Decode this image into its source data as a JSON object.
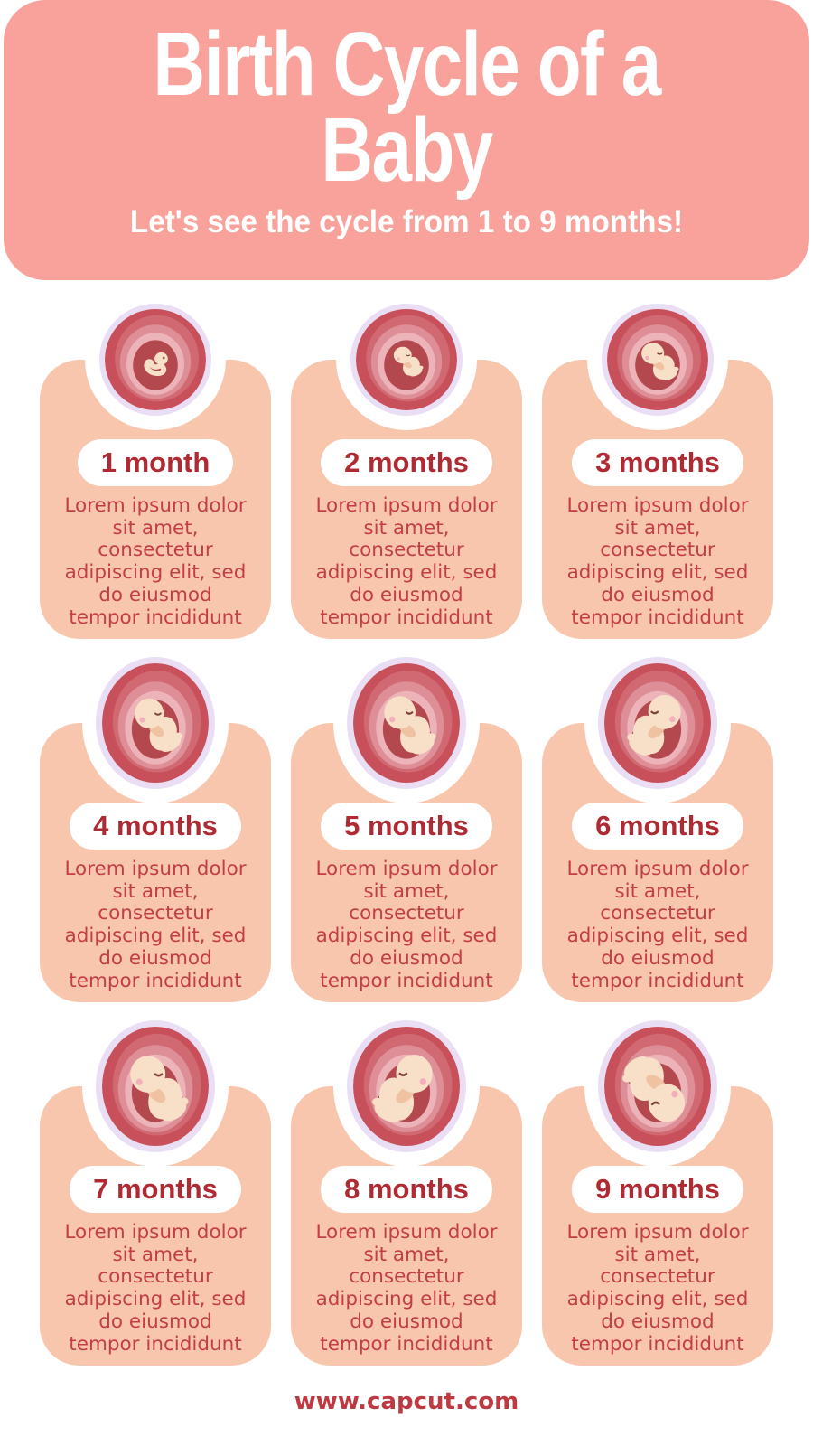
{
  "header": {
    "title": "Birth Cycle of a Baby",
    "title_lines": [
      "Birth Cycle of a",
      "Baby"
    ],
    "subtitle": "Let's see the cycle from 1 to 9 months!"
  },
  "cards": [
    {
      "label": "1 month",
      "body": "Lorem ipsum dolor sit amet, consectetur adipiscing elit, sed do eiusmod tempor incididunt",
      "illustration": {
        "name": "embryo-in-womb",
        "variant": "embryo",
        "scale": 1.15,
        "flip": false,
        "rotate": 0
      }
    },
    {
      "label": "2 months",
      "body": "Lorem ipsum dolor sit amet, consectetur adipiscing elit, sed do eiusmod tempor incididunt",
      "illustration": {
        "name": "fetus-in-womb",
        "variant": "fetus",
        "scale": 0.75,
        "flip": false,
        "rotate": 0
      }
    },
    {
      "label": "3 months",
      "body": "Lorem ipsum dolor sit amet, consectetur adipiscing elit, sed do eiusmod tempor incididunt",
      "illustration": {
        "name": "fetus-in-womb",
        "variant": "fetus",
        "scale": 0.95,
        "flip": false,
        "rotate": 0
      }
    },
    {
      "label": "4 months",
      "body": "Lorem ipsum dolor sit amet, consectetur adipiscing elit, sed do eiusmod tempor incididunt",
      "illustration": {
        "name": "fetus-in-womb",
        "variant": "fetus",
        "scale": 1.15,
        "flip": false,
        "rotate": 0
      }
    },
    {
      "label": "5 months",
      "body": "Lorem ipsum dolor sit amet, consectetur adipiscing elit, sed do eiusmod tempor incididunt",
      "illustration": {
        "name": "fetus-in-womb",
        "variant": "fetus",
        "scale": 1.25,
        "flip": false,
        "rotate": 0
      }
    },
    {
      "label": "6 months",
      "body": "Lorem ipsum dolor sit amet, consectetur adipiscing elit, sed do eiusmod tempor incididunt",
      "illustration": {
        "name": "fetus-in-womb",
        "variant": "fetus",
        "scale": 1.3,
        "flip": true,
        "rotate": 0
      }
    },
    {
      "label": "7 months",
      "body": "Lorem ipsum dolor sit amet, consectetur adipiscing elit, sed do eiusmod tempor incididunt",
      "illustration": {
        "name": "fetus-in-womb",
        "variant": "fetus",
        "scale": 1.4,
        "flip": false,
        "rotate": 0
      }
    },
    {
      "label": "8 months",
      "body": "Lorem ipsum dolor sit amet, consectetur adipiscing elit, sed do eiusmod tempor incididunt",
      "illustration": {
        "name": "fetus-in-womb",
        "variant": "fetus",
        "scale": 1.45,
        "flip": true,
        "rotate": 0
      }
    },
    {
      "label": "9 months",
      "body": "Lorem ipsum dolor sit amet, consectetur adipiscing elit, sed do eiusmod tempor incididunt",
      "illustration": {
        "name": "fetus-in-womb-head-down",
        "variant": "fetus",
        "scale": 1.45,
        "flip": false,
        "rotate": 175
      }
    }
  ],
  "footer": {
    "website": "www.capcut.com"
  },
  "colors": {
    "header_bg": "#F9A29B",
    "card_bg": "#F8C6AC",
    "ring_lavender": "#E9DEF4",
    "womb_red": "#C8505A",
    "womb_mid": "#D06972",
    "womb_light": "#DE8E96",
    "womb_lighter": "#ECB3B8",
    "womb_core": "#B4484F",
    "cord": "#A73D45",
    "skin": "#F8DFC7",
    "skin_shade": "#EFC3A2",
    "blush": "#F3B0BC",
    "title_text": "#FFFFFF",
    "label_text": "#AF2A33",
    "body_text": "#C23F47",
    "footer_text": "#BE3A42"
  }
}
